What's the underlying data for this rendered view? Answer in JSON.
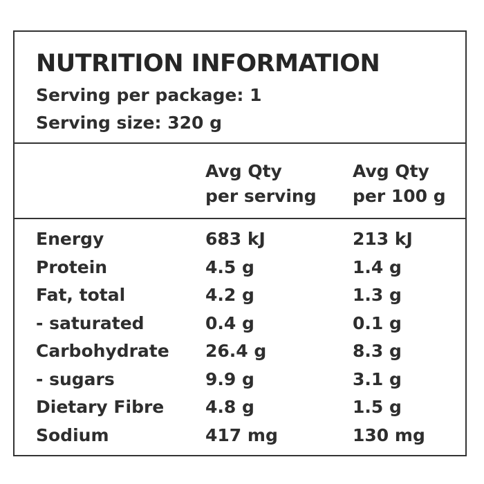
{
  "panel": {
    "title": "NUTRITION INFORMATION",
    "servings_per_package": "Serving per package: 1",
    "serving_size": "Serving size: 320 g"
  },
  "columns": {
    "per_serving": [
      "Avg Qty",
      "per serving"
    ],
    "per_100g": [
      "Avg Qty",
      "per 100 g"
    ]
  },
  "rows": [
    {
      "name": "Energy",
      "per_serving": "683 kJ",
      "per_100g": "213 kJ"
    },
    {
      "name": "Protein",
      "per_serving": "4.5 g",
      "per_100g": "1.4 g"
    },
    {
      "name": "Fat, total",
      "per_serving": "4.2 g",
      "per_100g": "1.3 g"
    },
    {
      "name": "- saturated",
      "per_serving": "0.4 g",
      "per_100g": "0.1 g"
    },
    {
      "name": "Carbohydrate",
      "per_serving": "26.4 g",
      "per_100g": "8.3 g"
    },
    {
      "name": "- sugars",
      "per_serving": "9.9 g",
      "per_100g": "3.1 g"
    },
    {
      "name": "Dietary Fibre",
      "per_serving": "4.8 g",
      "per_100g": "1.5 g"
    },
    {
      "name": "Sodium",
      "per_serving": "417 mg",
      "per_100g": "130 mg"
    }
  ]
}
